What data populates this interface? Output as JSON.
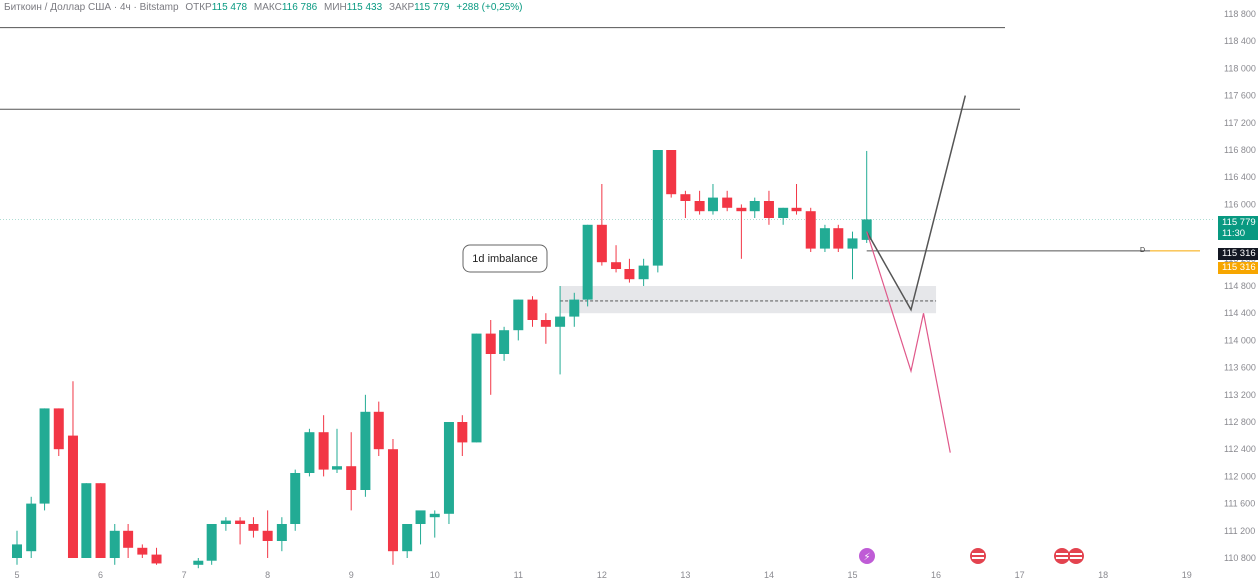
{
  "header": {
    "symbol": "Биткоин / Доллар США · 4ч · Bitstamp",
    "open_label": "ОТКР",
    "open_value": "115 478",
    "high_label": "МАКС",
    "high_value": "116 786",
    "low_label": "МИН",
    "low_value": "115 433",
    "close_label": "ЗАКР",
    "close_value": "115 779",
    "change": "+288 (+0,25%)"
  },
  "annotation": "1d imbalance",
  "level_label_small": "D",
  "price_tags": {
    "last_price": "115 779",
    "countdown": "11:30",
    "level_black": "115 316",
    "level_orange": "115 316"
  },
  "colors": {
    "up": "#22ab94",
    "down": "#f23645",
    "grid_line": "#555555",
    "zone": "#e3e4e8",
    "projection_black": "#555555",
    "projection_pink": "#e0588a",
    "level_orange": "#f7a600",
    "last_price_tag": "#089981"
  },
  "chart_data": {
    "type": "candlestick",
    "y_axis": {
      "ticks": [
        110800,
        111200,
        111600,
        112000,
        112400,
        112800,
        113200,
        113600,
        114000,
        114400,
        114800,
        115200,
        115600,
        116000,
        116400,
        116800,
        117200,
        117600,
        118000,
        118400,
        118800
      ],
      "tick_labels": [
        "110 800",
        "111 200",
        "111 600",
        "112 000",
        "112 400",
        "112 800",
        "113 200",
        "113 600",
        "114 000",
        "114 400",
        "114 800",
        "115 200",
        "115 600",
        "116 000",
        "116 400",
        "116 800",
        "117 200",
        "117 600",
        "118 000",
        "118 400",
        "118 800"
      ]
    },
    "x_axis": {
      "ticks": [
        5,
        6,
        7,
        8,
        9,
        10,
        11,
        12,
        13,
        14,
        15,
        16,
        17,
        18,
        19
      ],
      "tick_labels": [
        "5",
        "6",
        "7",
        "8",
        "9",
        "10",
        "11",
        "12",
        "13",
        "14",
        "15",
        "16",
        "17",
        "18",
        "19"
      ]
    },
    "candles_part1": [
      {
        "x": 5.0,
        "o": 110800,
        "h": 111200,
        "l": 110700,
        "c": 111000
      },
      {
        "x": 5.17,
        "o": 110900,
        "h": 111700,
        "l": 110800,
        "c": 111600
      },
      {
        "x": 5.33,
        "o": 111600,
        "h": 113000,
        "l": 111500,
        "c": 113000
      },
      {
        "x": 5.5,
        "o": 113000,
        "h": 113000,
        "l": 112300,
        "c": 112400
      },
      {
        "x": 5.67,
        "o": 112600,
        "h": 113400,
        "l": 110800,
        "c": 110800
      },
      {
        "x": 5.83,
        "o": 110800,
        "h": 111900,
        "l": 110800,
        "c": 111900
      },
      {
        "x": 6.0,
        "o": 111900,
        "h": 111900,
        "l": 110800,
        "c": 110800
      },
      {
        "x": 6.17,
        "o": 110800,
        "h": 111300,
        "l": 110700,
        "c": 111200
      },
      {
        "x": 6.33,
        "o": 111200,
        "h": 111300,
        "l": 110800,
        "c": 110950
      },
      {
        "x": 6.5,
        "o": 110950,
        "h": 111000,
        "l": 110800,
        "c": 110850
      },
      {
        "x": 6.67,
        "o": 110850,
        "h": 110950,
        "l": 110700,
        "c": 110720
      }
    ],
    "candles_part2": [
      {
        "x": 7.17,
        "o": 110700,
        "h": 110800,
        "l": 110650,
        "c": 110760
      },
      {
        "x": 7.33,
        "o": 110760,
        "h": 111300,
        "l": 110700,
        "c": 111300
      },
      {
        "x": 7.5,
        "o": 111300,
        "h": 111400,
        "l": 111200,
        "c": 111350
      },
      {
        "x": 7.67,
        "o": 111350,
        "h": 111400,
        "l": 111000,
        "c": 111300
      },
      {
        "x": 7.83,
        "o": 111300,
        "h": 111400,
        "l": 111100,
        "c": 111200
      },
      {
        "x": 8.0,
        "o": 111200,
        "h": 111500,
        "l": 110800,
        "c": 111050
      },
      {
        "x": 8.17,
        "o": 111050,
        "h": 111400,
        "l": 110900,
        "c": 111300
      },
      {
        "x": 8.33,
        "o": 111300,
        "h": 112100,
        "l": 111200,
        "c": 112050
      },
      {
        "x": 8.5,
        "o": 112050,
        "h": 112700,
        "l": 112000,
        "c": 112650
      },
      {
        "x": 8.67,
        "o": 112650,
        "h": 112900,
        "l": 112000,
        "c": 112100
      },
      {
        "x": 8.83,
        "o": 112100,
        "h": 112700,
        "l": 112050,
        "c": 112150
      },
      {
        "x": 9.0,
        "o": 112150,
        "h": 112650,
        "l": 111500,
        "c": 111800
      },
      {
        "x": 9.17,
        "o": 111800,
        "h": 113200,
        "l": 111700,
        "c": 112950
      },
      {
        "x": 9.33,
        "o": 112950,
        "h": 113100,
        "l": 112300,
        "c": 112400
      },
      {
        "x": 9.5,
        "o": 112400,
        "h": 112550,
        "l": 110700,
        "c": 110900
      },
      {
        "x": 9.67,
        "o": 110900,
        "h": 111300,
        "l": 110800,
        "c": 111300
      },
      {
        "x": 9.83,
        "o": 111300,
        "h": 111400,
        "l": 111000,
        "c": 111500
      },
      {
        "x": 10.0,
        "o": 111400,
        "h": 111500,
        "l": 111100,
        "c": 111450
      }
    ],
    "candles_part3": [
      {
        "x": 10.17,
        "o": 111450,
        "h": 112800,
        "l": 111300,
        "c": 112800
      },
      {
        "x": 10.33,
        "o": 112800,
        "h": 112900,
        "l": 112300,
        "c": 112500
      },
      {
        "x": 10.5,
        "o": 112500,
        "h": 114100,
        "l": 112500,
        "c": 114100
      },
      {
        "x": 10.67,
        "o": 114100,
        "h": 114300,
        "l": 113200,
        "c": 113800
      },
      {
        "x": 10.83,
        "o": 113800,
        "h": 114200,
        "l": 113700,
        "c": 114150
      },
      {
        "x": 11.0,
        "o": 114150,
        "h": 114600,
        "l": 114000,
        "c": 114600
      },
      {
        "x": 11.17,
        "o": 114600,
        "h": 114650,
        "l": 114200,
        "c": 114300
      },
      {
        "x": 11.33,
        "o": 114300,
        "h": 114400,
        "l": 113950,
        "c": 114200
      },
      {
        "x": 11.5,
        "o": 114200,
        "h": 114800,
        "l": 113500,
        "c": 114350
      },
      {
        "x": 11.67,
        "o": 114350,
        "h": 114700,
        "l": 114200,
        "c": 114600
      }
    ],
    "candles_part4": [
      {
        "x": 11.83,
        "o": 114600,
        "h": 115700,
        "l": 114500,
        "c": 115700
      },
      {
        "x": 12.0,
        "o": 115700,
        "h": 116300,
        "l": 115100,
        "c": 115150
      },
      {
        "x": 12.17,
        "o": 115150,
        "h": 115400,
        "l": 115000,
        "c": 115050
      },
      {
        "x": 12.33,
        "o": 115050,
        "h": 115200,
        "l": 114850,
        "c": 114900
      },
      {
        "x": 12.5,
        "o": 114900,
        "h": 115200,
        "l": 114800,
        "c": 115100
      },
      {
        "x": 12.67,
        "o": 115100,
        "h": 116800,
        "l": 115000,
        "c": 116800
      },
      {
        "x": 12.83,
        "o": 116800,
        "h": 116800,
        "l": 116100,
        "c": 116150
      },
      {
        "x": 13.0,
        "o": 116150,
        "h": 116200,
        "l": 115800,
        "c": 116050
      },
      {
        "x": 13.17,
        "o": 116050,
        "h": 116200,
        "l": 115850,
        "c": 115900
      },
      {
        "x": 13.33,
        "o": 115900,
        "h": 116300,
        "l": 115850,
        "c": 116100
      },
      {
        "x": 13.5,
        "o": 116100,
        "h": 116200,
        "l": 115900,
        "c": 115950
      },
      {
        "x": 13.67,
        "o": 115950,
        "h": 116000,
        "l": 115200,
        "c": 115900
      },
      {
        "x": 13.83,
        "o": 115900,
        "h": 116100,
        "l": 115800,
        "c": 116050
      },
      {
        "x": 14.0,
        "o": 116050,
        "h": 116200,
        "l": 115700,
        "c": 115800
      },
      {
        "x": 14.17,
        "o": 115800,
        "h": 115950,
        "l": 115700,
        "c": 115950
      },
      {
        "x": 14.33,
        "o": 115950,
        "h": 116300,
        "l": 115850,
        "c": 115900
      },
      {
        "x": 14.5,
        "o": 115900,
        "h": 115950,
        "l": 115300,
        "c": 115350
      },
      {
        "x": 14.67,
        "o": 115350,
        "h": 115700,
        "l": 115300,
        "c": 115650
      },
      {
        "x": 14.83,
        "o": 115650,
        "h": 115700,
        "l": 115300,
        "c": 115350
      },
      {
        "x": 15.0,
        "o": 115350,
        "h": 115600,
        "l": 114900,
        "c": 115500
      },
      {
        "x": 15.17,
        "o": 115478,
        "h": 116786,
        "l": 115433,
        "c": 115779
      }
    ],
    "horizontal_lines": [
      118600,
      117400,
      115316
    ],
    "last_price": 115779,
    "imbalance_zone": {
      "x_from": 11.5,
      "x_to": 16.0,
      "y_from": 114400,
      "y_to": 114800
    },
    "imbalance_midline": 114580,
    "projection_black": [
      {
        "x": 15.17,
        "y": 115600
      },
      {
        "x": 15.7,
        "y": 114450
      },
      {
        "x": 16.35,
        "y": 117600
      }
    ],
    "projection_pink": [
      {
        "x": 15.17,
        "y": 115600
      },
      {
        "x": 15.7,
        "y": 113550
      },
      {
        "x": 15.85,
        "y": 114400
      },
      {
        "x": 16.17,
        "y": 112350
      }
    ]
  }
}
